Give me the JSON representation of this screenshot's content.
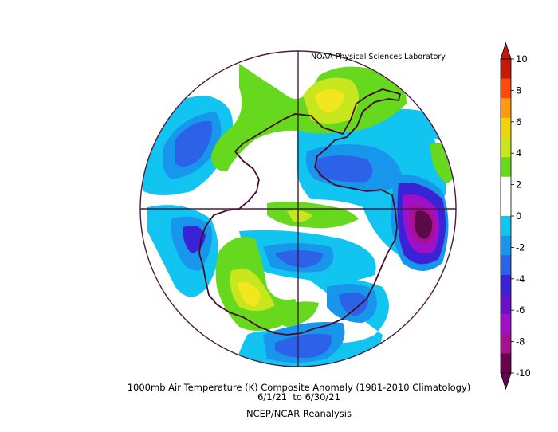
{
  "map": {
    "credit": "NOAA Physical Sciences Laboratory",
    "title": "1000mb Air Temperature (K) Composite Anomaly (1981-2010 Climatology)",
    "date_range": "6/1/21  to 6/30/21",
    "source": "NCEP/NCAR Reanalysis",
    "projection": "south polar stereographic",
    "variable": "1000mb air temperature anomaly",
    "units": "K"
  },
  "colorbar": {
    "ticks": [
      "10",
      "8",
      "6",
      "4",
      "2",
      "0",
      "-2",
      "-4",
      "-6",
      "-8",
      "-10"
    ],
    "colors": [
      "#c41a0a",
      "#ff4a0a",
      "#ff9a10",
      "#f2d20a",
      "#c8e61e",
      "#66d81e",
      "#ffffff",
      "#ffffff",
      "#12c4f0",
      "#1896ec",
      "#2b62e8",
      "#3a22d6",
      "#6a10c8",
      "#a010c8",
      "#a81090",
      "#6a0050"
    ]
  },
  "anomaly_regions": [
    {
      "name": "warm-anomaly-east-antarctica",
      "value": 5,
      "color": "#f2e61e"
    },
    {
      "name": "warm-anomaly-ross-sector",
      "value": 5,
      "color": "#f2e61e"
    },
    {
      "name": "cold-anomaly-weddell-atlantic",
      "value": -10,
      "color": "#5a0a48"
    },
    {
      "name": "cold-anomaly-amundsen-sea",
      "value": -5,
      "color": "#3a22d6"
    },
    {
      "name": "cold-anomaly-indian-ocean",
      "value": -5,
      "color": "#3a22d6"
    }
  ]
}
